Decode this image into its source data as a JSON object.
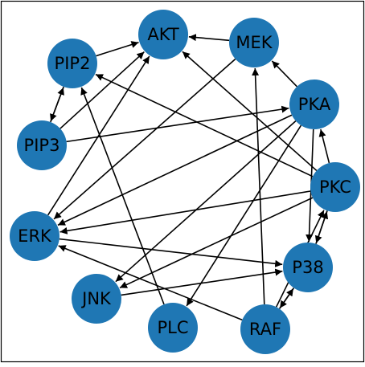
{
  "graph": {
    "node_color": "#1f77b4",
    "edge_color": "#000000",
    "nodes": [
      {
        "id": "AKT",
        "label": "AKT"
      },
      {
        "id": "MEK",
        "label": "MEK"
      },
      {
        "id": "PIP2",
        "label": "PIP2"
      },
      {
        "id": "PKA",
        "label": "PKA"
      },
      {
        "id": "PIP3",
        "label": "PIP3"
      },
      {
        "id": "PKC",
        "label": "PKC"
      },
      {
        "id": "ERK",
        "label": "ERK"
      },
      {
        "id": "P38",
        "label": "P38"
      },
      {
        "id": "JNK",
        "label": "JNK"
      },
      {
        "id": "PLC",
        "label": "PLC"
      },
      {
        "id": "RAF",
        "label": "RAF"
      }
    ],
    "edges": [
      {
        "from": "MEK",
        "to": "AKT"
      },
      {
        "from": "PIP2",
        "to": "AKT"
      },
      {
        "from": "PIP2",
        "to": "PIP3"
      },
      {
        "from": "PIP3",
        "to": "PIP2"
      },
      {
        "from": "PIP3",
        "to": "AKT"
      },
      {
        "from": "PIP3",
        "to": "PKA"
      },
      {
        "from": "ERK",
        "to": "AKT"
      },
      {
        "from": "MEK",
        "to": "ERK"
      },
      {
        "from": "PLC",
        "to": "PIP2"
      },
      {
        "from": "PKC",
        "to": "PIP2"
      },
      {
        "from": "PKC",
        "to": "AKT"
      },
      {
        "from": "PKA",
        "to": "MEK"
      },
      {
        "from": "PKA",
        "to": "ERK"
      },
      {
        "from": "PKA",
        "to": "JNK"
      },
      {
        "from": "PKA",
        "to": "P38"
      },
      {
        "from": "PKA",
        "to": "PLC"
      },
      {
        "from": "PKC",
        "to": "PKA"
      },
      {
        "from": "PKC",
        "to": "ERK"
      },
      {
        "from": "PKC",
        "to": "JNK"
      },
      {
        "from": "PKC",
        "to": "P38"
      },
      {
        "from": "P38",
        "to": "PKC"
      },
      {
        "from": "ERK",
        "to": "P38"
      },
      {
        "from": "JNK",
        "to": "P38"
      },
      {
        "from": "RAF",
        "to": "ERK"
      },
      {
        "from": "RAF",
        "to": "MEK"
      },
      {
        "from": "RAF",
        "to": "P38"
      },
      {
        "from": "P38",
        "to": "RAF"
      },
      {
        "from": "RAF",
        "to": "PKC"
      }
    ]
  }
}
